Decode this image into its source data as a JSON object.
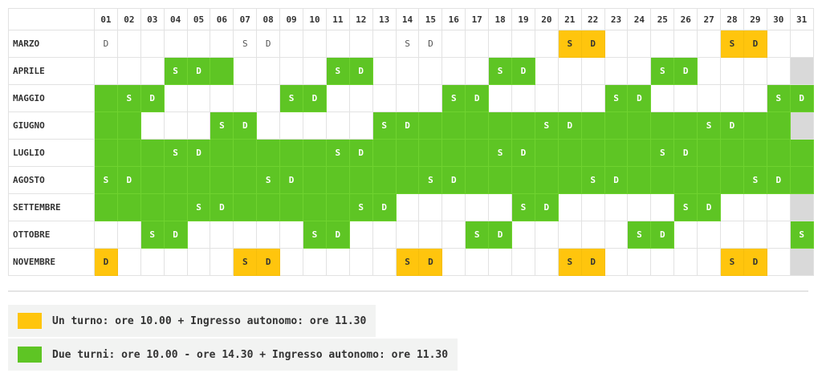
{
  "colors": {
    "two_shifts": "#5ec524",
    "one_shift": "#ffc50d",
    "unavailable": "#d9d9d9",
    "empty": "#ffffff"
  },
  "days": [
    "01",
    "02",
    "03",
    "04",
    "05",
    "06",
    "07",
    "08",
    "09",
    "10",
    "11",
    "12",
    "13",
    "14",
    "15",
    "16",
    "17",
    "18",
    "19",
    "20",
    "21",
    "22",
    "23",
    "24",
    "25",
    "26",
    "27",
    "28",
    "29",
    "30",
    "31"
  ],
  "months": [
    {
      "name": "MARZO",
      "cells": [
        [
          "D",
          "w"
        ],
        [
          "",
          "w"
        ],
        [
          "",
          "w"
        ],
        [
          "",
          "w"
        ],
        [
          "",
          "w"
        ],
        [
          "",
          "w"
        ],
        [
          "S",
          "w"
        ],
        [
          "D",
          "w"
        ],
        [
          "",
          "w"
        ],
        [
          "",
          "w"
        ],
        [
          "",
          "w"
        ],
        [
          "",
          "w"
        ],
        [
          "",
          "w"
        ],
        [
          "S",
          "w"
        ],
        [
          "D",
          "w"
        ],
        [
          "",
          "w"
        ],
        [
          "",
          "w"
        ],
        [
          "",
          "w"
        ],
        [
          "",
          "w"
        ],
        [
          "",
          "w"
        ],
        [
          "S",
          "y"
        ],
        [
          "D",
          "y"
        ],
        [
          "",
          "w"
        ],
        [
          "",
          "w"
        ],
        [
          "",
          "w"
        ],
        [
          "",
          "w"
        ],
        [
          "",
          "w"
        ],
        [
          "S",
          "y"
        ],
        [
          "D",
          "y"
        ],
        [
          "",
          "w"
        ],
        [
          "",
          "w"
        ]
      ]
    },
    {
      "name": "APRILE",
      "cells": [
        [
          "",
          "w"
        ],
        [
          "",
          "w"
        ],
        [
          "",
          "w"
        ],
        [
          "S",
          "g"
        ],
        [
          "D",
          "g"
        ],
        [
          "",
          "g"
        ],
        [
          "",
          "w"
        ],
        [
          "",
          "w"
        ],
        [
          "",
          "w"
        ],
        [
          "",
          "w"
        ],
        [
          "S",
          "g"
        ],
        [
          "D",
          "g"
        ],
        [
          "",
          "w"
        ],
        [
          "",
          "w"
        ],
        [
          "",
          "w"
        ],
        [
          "",
          "w"
        ],
        [
          "",
          "w"
        ],
        [
          "S",
          "g"
        ],
        [
          "D",
          "g"
        ],
        [
          "",
          "w"
        ],
        [
          "",
          "w"
        ],
        [
          "",
          "w"
        ],
        [
          "",
          "w"
        ],
        [
          "",
          "w"
        ],
        [
          "S",
          "g"
        ],
        [
          "D",
          "g"
        ],
        [
          "",
          "w"
        ],
        [
          "",
          "w"
        ],
        [
          "",
          "w"
        ],
        [
          "",
          "w"
        ],
        [
          "",
          "x"
        ]
      ]
    },
    {
      "name": "MAGGIO",
      "cells": [
        [
          "",
          "g"
        ],
        [
          "S",
          "g"
        ],
        [
          "D",
          "g"
        ],
        [
          "",
          "w"
        ],
        [
          "",
          "w"
        ],
        [
          "",
          "w"
        ],
        [
          "",
          "w"
        ],
        [
          "",
          "w"
        ],
        [
          "S",
          "g"
        ],
        [
          "D",
          "g"
        ],
        [
          "",
          "w"
        ],
        [
          "",
          "w"
        ],
        [
          "",
          "w"
        ],
        [
          "",
          "w"
        ],
        [
          "",
          "w"
        ],
        [
          "S",
          "g"
        ],
        [
          "D",
          "g"
        ],
        [
          "",
          "w"
        ],
        [
          "",
          "w"
        ],
        [
          "",
          "w"
        ],
        [
          "",
          "w"
        ],
        [
          "",
          "w"
        ],
        [
          "S",
          "g"
        ],
        [
          "D",
          "g"
        ],
        [
          "",
          "w"
        ],
        [
          "",
          "w"
        ],
        [
          "",
          "w"
        ],
        [
          "",
          "w"
        ],
        [
          "",
          "w"
        ],
        [
          "S",
          "g"
        ],
        [
          "D",
          "g"
        ]
      ]
    },
    {
      "name": "GIUGNO",
      "cells": [
        [
          "",
          "g"
        ],
        [
          "",
          "g"
        ],
        [
          "",
          "w"
        ],
        [
          "",
          "w"
        ],
        [
          "",
          "w"
        ],
        [
          "S",
          "g"
        ],
        [
          "D",
          "g"
        ],
        [
          "",
          "w"
        ],
        [
          "",
          "w"
        ],
        [
          "",
          "w"
        ],
        [
          "",
          "w"
        ],
        [
          "",
          "w"
        ],
        [
          "S",
          "g"
        ],
        [
          "D",
          "g"
        ],
        [
          "",
          "g"
        ],
        [
          "",
          "g"
        ],
        [
          "",
          "g"
        ],
        [
          "",
          "g"
        ],
        [
          "",
          "g"
        ],
        [
          "S",
          "g"
        ],
        [
          "D",
          "g"
        ],
        [
          "",
          "g"
        ],
        [
          "",
          "g"
        ],
        [
          "",
          "g"
        ],
        [
          "",
          "g"
        ],
        [
          "",
          "g"
        ],
        [
          "S",
          "g"
        ],
        [
          "D",
          "g"
        ],
        [
          "",
          "g"
        ],
        [
          "",
          "g"
        ],
        [
          "",
          "x"
        ]
      ]
    },
    {
      "name": "LUGLIO",
      "cells": [
        [
          "",
          "g"
        ],
        [
          "",
          "g"
        ],
        [
          "",
          "g"
        ],
        [
          "S",
          "g"
        ],
        [
          "D",
          "g"
        ],
        [
          "",
          "g"
        ],
        [
          "",
          "g"
        ],
        [
          "",
          "g"
        ],
        [
          "",
          "g"
        ],
        [
          "",
          "g"
        ],
        [
          "S",
          "g"
        ],
        [
          "D",
          "g"
        ],
        [
          "",
          "g"
        ],
        [
          "",
          "g"
        ],
        [
          "",
          "g"
        ],
        [
          "",
          "g"
        ],
        [
          "",
          "g"
        ],
        [
          "S",
          "g"
        ],
        [
          "D",
          "g"
        ],
        [
          "",
          "g"
        ],
        [
          "",
          "g"
        ],
        [
          "",
          "g"
        ],
        [
          "",
          "g"
        ],
        [
          "",
          "g"
        ],
        [
          "S",
          "g"
        ],
        [
          "D",
          "g"
        ],
        [
          "",
          "g"
        ],
        [
          "",
          "g"
        ],
        [
          "",
          "g"
        ],
        [
          "",
          "g"
        ],
        [
          "",
          "g"
        ]
      ]
    },
    {
      "name": "AGOSTO",
      "cells": [
        [
          "S",
          "g"
        ],
        [
          "D",
          "g"
        ],
        [
          "",
          "g"
        ],
        [
          "",
          "g"
        ],
        [
          "",
          "g"
        ],
        [
          "",
          "g"
        ],
        [
          "",
          "g"
        ],
        [
          "S",
          "g"
        ],
        [
          "D",
          "g"
        ],
        [
          "",
          "g"
        ],
        [
          "",
          "g"
        ],
        [
          "",
          "g"
        ],
        [
          "",
          "g"
        ],
        [
          "",
          "g"
        ],
        [
          "S",
          "g"
        ],
        [
          "D",
          "g"
        ],
        [
          "",
          "g"
        ],
        [
          "",
          "g"
        ],
        [
          "",
          "g"
        ],
        [
          "",
          "g"
        ],
        [
          "",
          "g"
        ],
        [
          "S",
          "g"
        ],
        [
          "D",
          "g"
        ],
        [
          "",
          "g"
        ],
        [
          "",
          "g"
        ],
        [
          "",
          "g"
        ],
        [
          "",
          "g"
        ],
        [
          "",
          "g"
        ],
        [
          "S",
          "g"
        ],
        [
          "D",
          "g"
        ],
        [
          "",
          "g"
        ]
      ]
    },
    {
      "name": "SETTEMBRE",
      "cells": [
        [
          "",
          "g"
        ],
        [
          "",
          "g"
        ],
        [
          "",
          "g"
        ],
        [
          "",
          "g"
        ],
        [
          "S",
          "g"
        ],
        [
          "D",
          "g"
        ],
        [
          "",
          "g"
        ],
        [
          "",
          "g"
        ],
        [
          "",
          "g"
        ],
        [
          "",
          "g"
        ],
        [
          "",
          "g"
        ],
        [
          "S",
          "g"
        ],
        [
          "D",
          "g"
        ],
        [
          "",
          "w"
        ],
        [
          "",
          "w"
        ],
        [
          "",
          "w"
        ],
        [
          "",
          "w"
        ],
        [
          "",
          "w"
        ],
        [
          "S",
          "g"
        ],
        [
          "D",
          "g"
        ],
        [
          "",
          "w"
        ],
        [
          "",
          "w"
        ],
        [
          "",
          "w"
        ],
        [
          "",
          "w"
        ],
        [
          "",
          "w"
        ],
        [
          "S",
          "g"
        ],
        [
          "D",
          "g"
        ],
        [
          "",
          "w"
        ],
        [
          "",
          "w"
        ],
        [
          "",
          "w"
        ],
        [
          "",
          "x"
        ]
      ]
    },
    {
      "name": "OTTOBRE",
      "cells": [
        [
          "",
          "w"
        ],
        [
          "",
          "w"
        ],
        [
          "S",
          "g"
        ],
        [
          "D",
          "g"
        ],
        [
          "",
          "w"
        ],
        [
          "",
          "w"
        ],
        [
          "",
          "w"
        ],
        [
          "",
          "w"
        ],
        [
          "",
          "w"
        ],
        [
          "S",
          "g"
        ],
        [
          "D",
          "g"
        ],
        [
          "",
          "w"
        ],
        [
          "",
          "w"
        ],
        [
          "",
          "w"
        ],
        [
          "",
          "w"
        ],
        [
          "",
          "w"
        ],
        [
          "S",
          "g"
        ],
        [
          "D",
          "g"
        ],
        [
          "",
          "w"
        ],
        [
          "",
          "w"
        ],
        [
          "",
          "w"
        ],
        [
          "",
          "w"
        ],
        [
          "",
          "w"
        ],
        [
          "S",
          "g"
        ],
        [
          "D",
          "g"
        ],
        [
          "",
          "w"
        ],
        [
          "",
          "w"
        ],
        [
          "",
          "w"
        ],
        [
          "",
          "w"
        ],
        [
          "",
          "w"
        ],
        [
          "S",
          "g"
        ]
      ]
    },
    {
      "name": "NOVEMBRE",
      "cells": [
        [
          "D",
          "y"
        ],
        [
          "",
          "w"
        ],
        [
          "",
          "w"
        ],
        [
          "",
          "w"
        ],
        [
          "",
          "w"
        ],
        [
          "",
          "w"
        ],
        [
          "S",
          "y"
        ],
        [
          "D",
          "y"
        ],
        [
          "",
          "w"
        ],
        [
          "",
          "w"
        ],
        [
          "",
          "w"
        ],
        [
          "",
          "w"
        ],
        [
          "",
          "w"
        ],
        [
          "S",
          "y"
        ],
        [
          "D",
          "y"
        ],
        [
          "",
          "w"
        ],
        [
          "",
          "w"
        ],
        [
          "",
          "w"
        ],
        [
          "",
          "w"
        ],
        [
          "",
          "w"
        ],
        [
          "S",
          "y"
        ],
        [
          "D",
          "y"
        ],
        [
          "",
          "w"
        ],
        [
          "",
          "w"
        ],
        [
          "",
          "w"
        ],
        [
          "",
          "w"
        ],
        [
          "",
          "w"
        ],
        [
          "S",
          "y"
        ],
        [
          "D",
          "y"
        ],
        [
          "",
          "w"
        ],
        [
          "",
          "x"
        ]
      ]
    }
  ],
  "legend": {
    "one_shift": "Un turno: ore 10.00 + Ingresso autonomo: ore 11.30",
    "two_shifts": "Due turni: ore 10.00 - ore 14.30 + Ingresso autonomo: ore 11.30"
  }
}
